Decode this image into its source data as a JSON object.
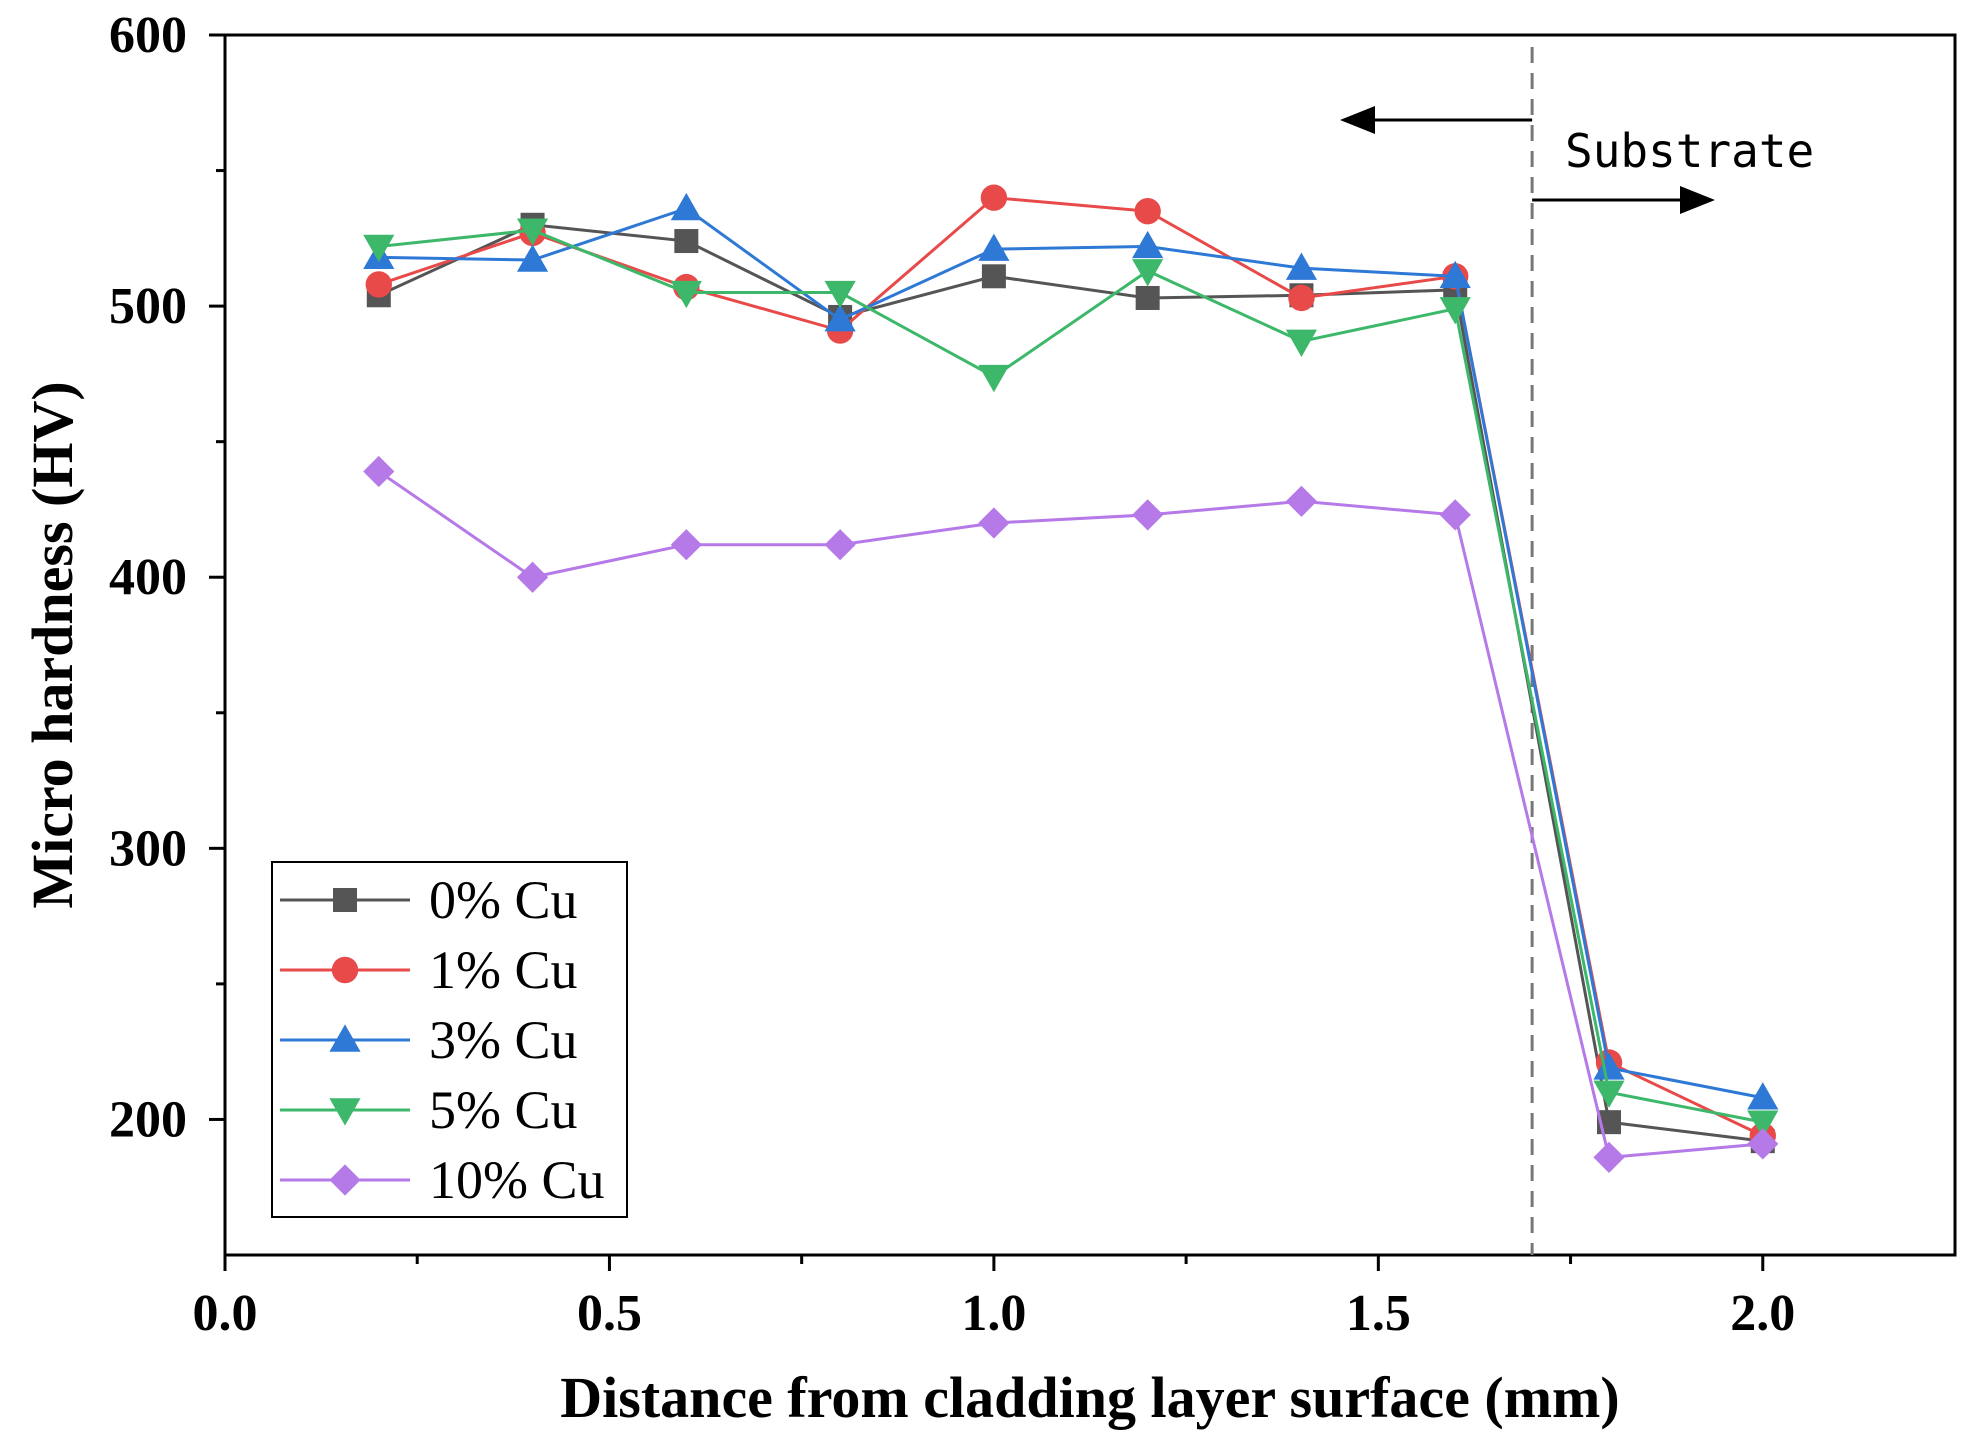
{
  "chart_data": {
    "type": "line",
    "title": "",
    "xlabel": "Distance from cladding layer surface (mm)",
    "ylabel": "Micro hardness (HV)",
    "xlim": [
      0.0,
      2.25
    ],
    "ylim": [
      150,
      600
    ],
    "x_ticks": [
      0.0,
      0.5,
      1.0,
      1.5,
      2.0
    ],
    "x_tick_labels": [
      "0.0",
      "0.5",
      "1.0",
      "1.5",
      "2.0"
    ],
    "y_ticks": [
      200,
      300,
      400,
      500,
      600
    ],
    "y_tick_labels": [
      "200",
      "300",
      "400",
      "500",
      "600"
    ],
    "x": [
      0.2,
      0.4,
      0.6,
      0.8,
      1.0,
      1.2,
      1.4,
      1.6,
      1.8,
      2.0
    ],
    "series": [
      {
        "name": "0% Cu",
        "color": "#555555",
        "marker": "square",
        "values": [
          504,
          530,
          524,
          496,
          511,
          503,
          504,
          506,
          199,
          192
        ]
      },
      {
        "name": "1% Cu",
        "color": "#e84a4a",
        "marker": "circle",
        "values": [
          508,
          527,
          507,
          491,
          540,
          535,
          503,
          511,
          221,
          194
        ]
      },
      {
        "name": "3% Cu",
        "color": "#2e78d6",
        "marker": "triangle-up",
        "values": [
          518,
          517,
          536,
          495,
          521,
          522,
          514,
          511,
          219,
          208
        ]
      },
      {
        "name": "5% Cu",
        "color": "#3db86b",
        "marker": "triangle-down",
        "values": [
          522,
          528,
          505,
          505,
          474,
          513,
          487,
          499,
          210,
          199
        ]
      },
      {
        "name": "10% Cu",
        "color": "#b579e8",
        "marker": "diamond",
        "values": [
          439,
          400,
          412,
          412,
          420,
          423,
          428,
          423,
          186,
          191
        ]
      }
    ],
    "legend_position": "bottom-left",
    "boundary_line_x": 1.7,
    "annotation": "Substrate",
    "grid": false
  }
}
